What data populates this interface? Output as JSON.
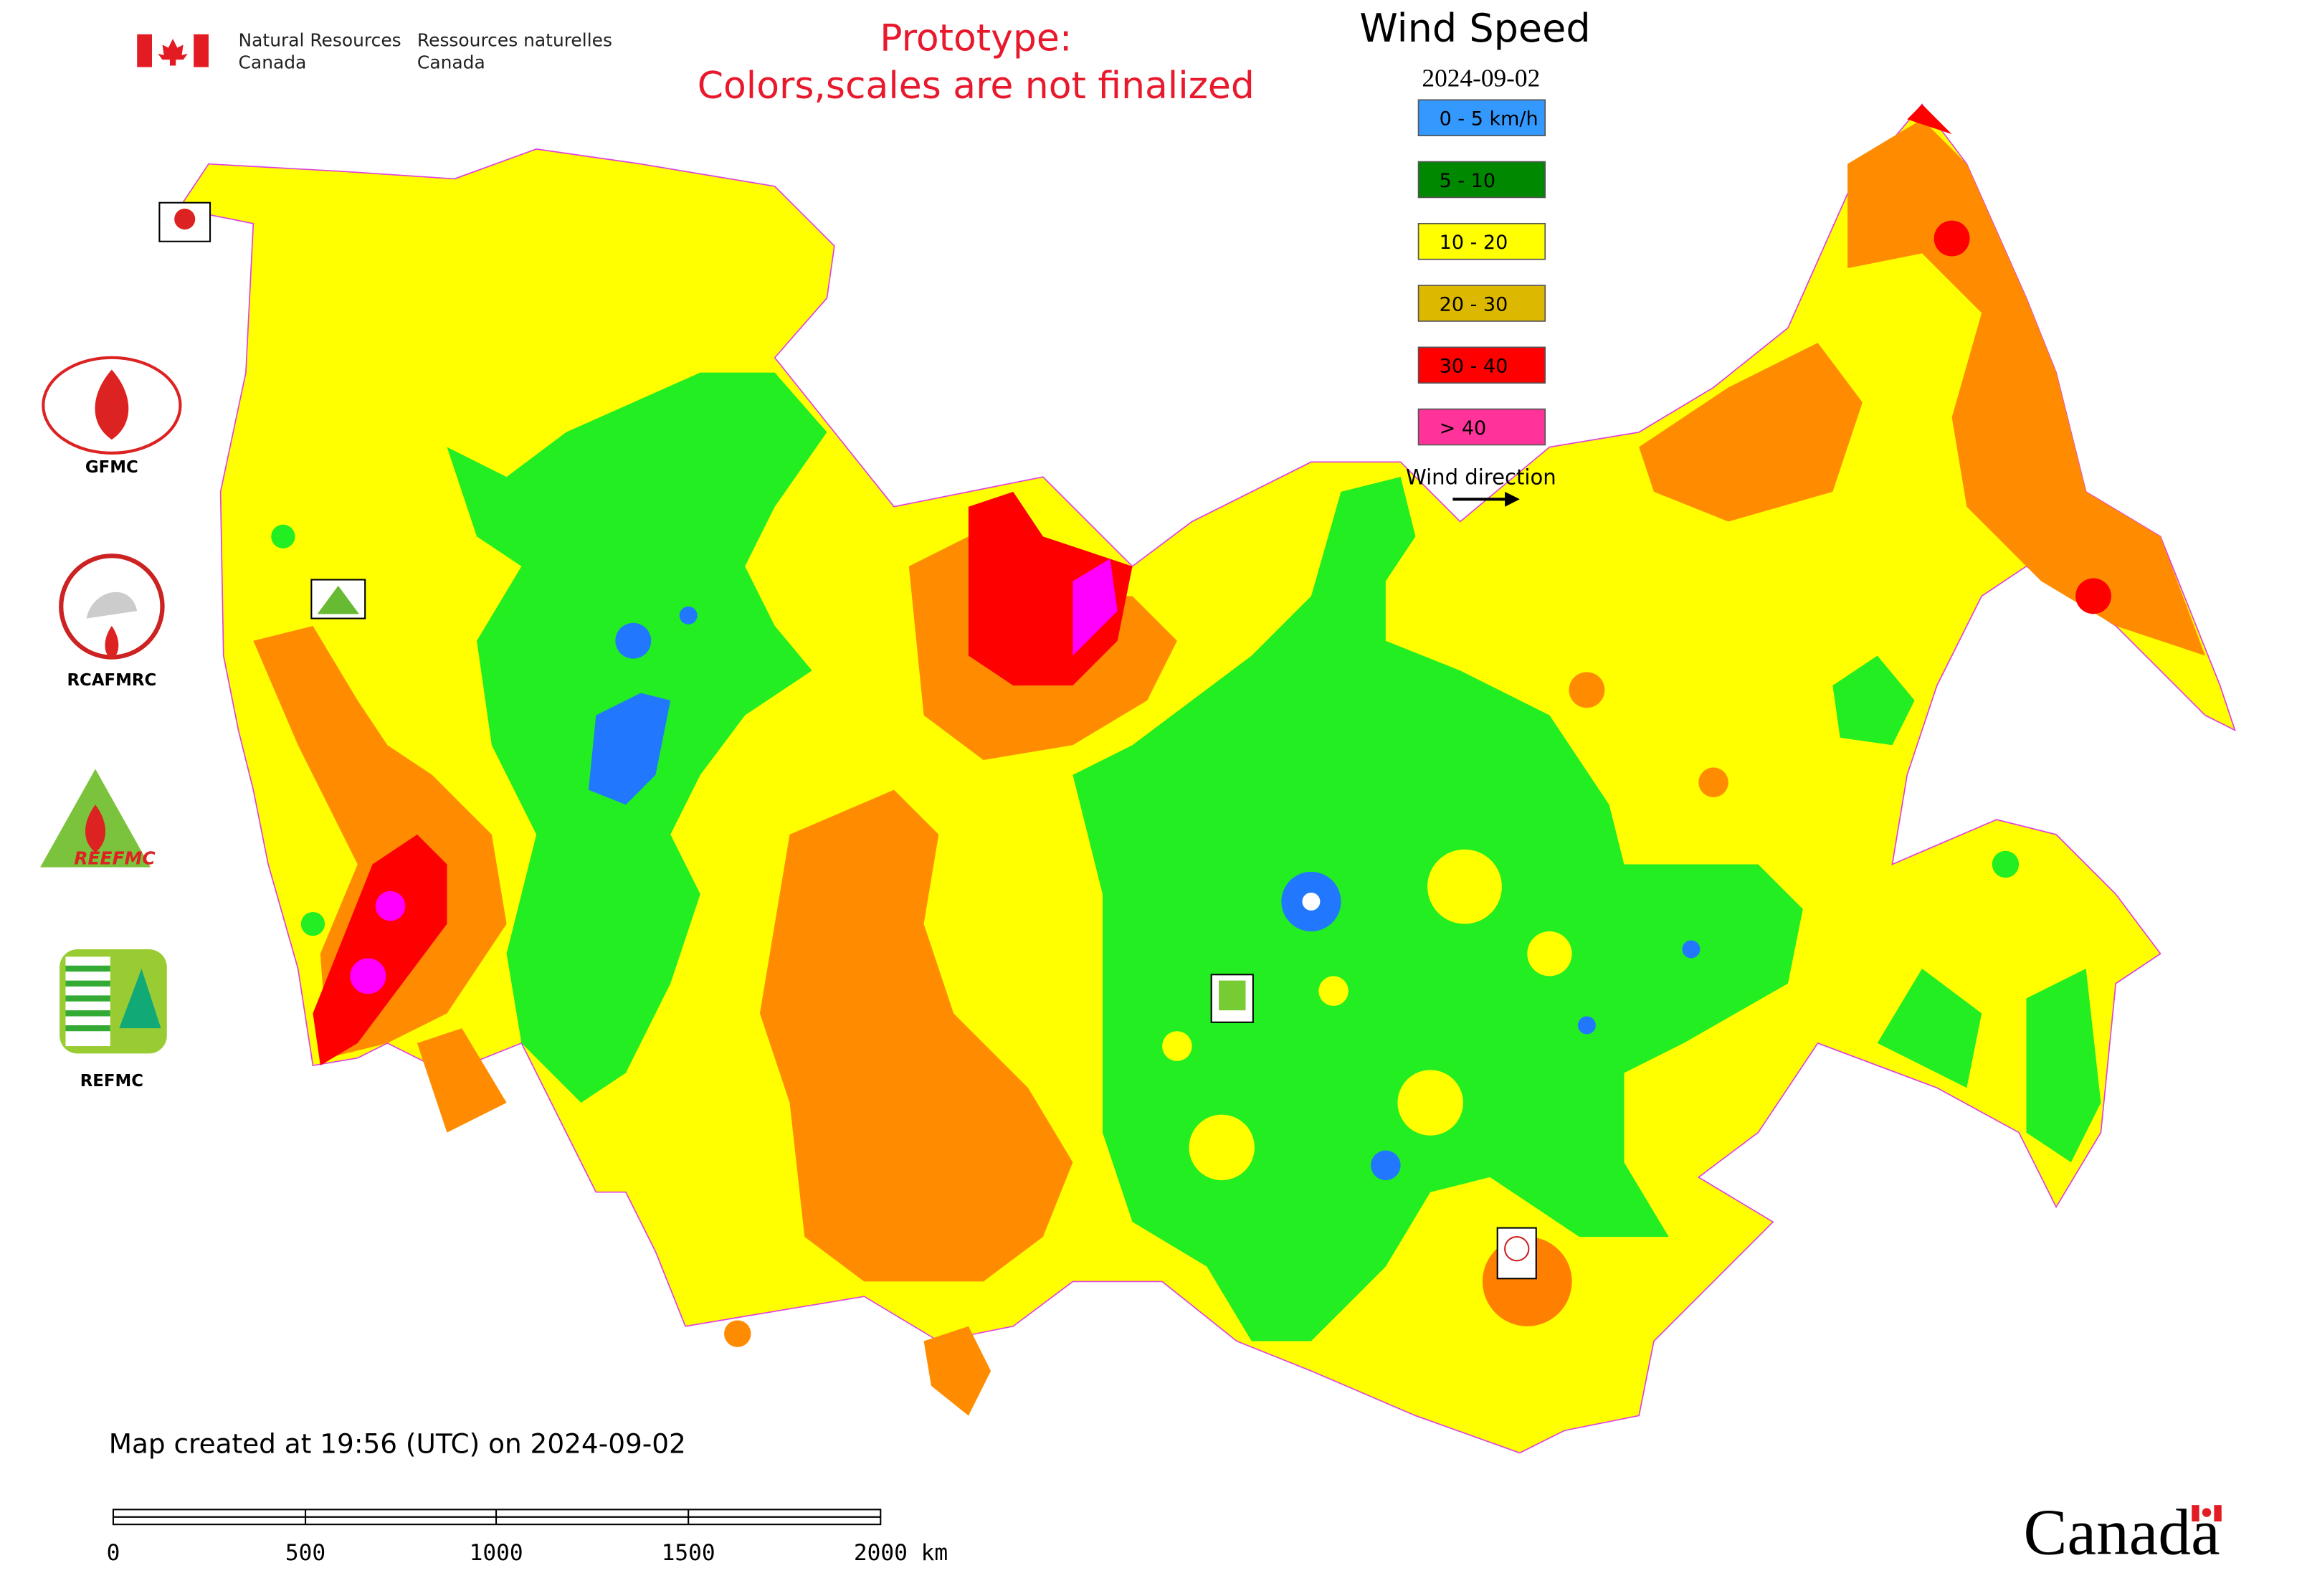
{
  "header": {
    "agency_en": [
      "Natural Resources",
      "Canada"
    ],
    "agency_fr": [
      "Ressources naturelles",
      "Canada"
    ],
    "notice": [
      "Prototype:",
      "Colors,scales are not finalized"
    ]
  },
  "legend": {
    "title": "Wind Speed",
    "date": "2024-09-02",
    "items": [
      {
        "label": "0 - 5 km/h",
        "color": "#3399ff"
      },
      {
        "label": "5 - 10",
        "color": "#008800"
      },
      {
        "label": "10 - 20",
        "color": "#ffff00"
      },
      {
        "label": "20 - 30",
        "color": "#ddb800"
      },
      {
        "label": "30 - 40",
        "color": "#ff0000"
      },
      {
        "label": "> 40",
        "color": "#ff3399"
      }
    ],
    "direction": "Wind direction"
  },
  "logos": [
    "GFMC",
    "RCAFMRC",
    "REFMC"
  ],
  "footer": {
    "created": "Map created at 19:56 (UTC) on 2024-09-02",
    "scale_ticks": [
      "0",
      "500",
      "1000",
      "1500",
      "2000 km"
    ],
    "wordmark": "Canada"
  }
}
